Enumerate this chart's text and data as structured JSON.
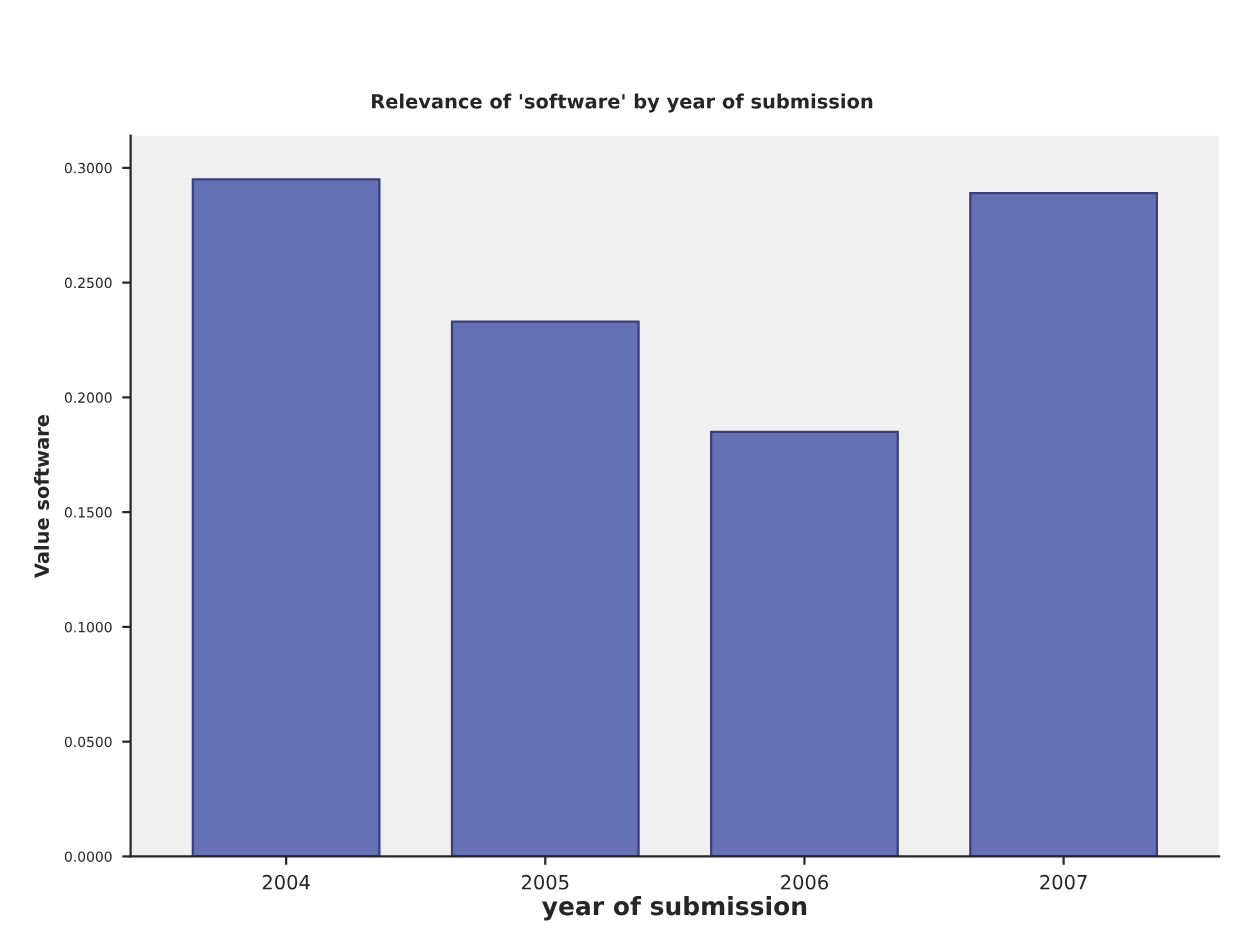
{
  "chart_data": {
    "type": "bar",
    "title": "Relevance of 'software' by year of submission",
    "xlabel": "year of submission",
    "ylabel": "Value software",
    "categories": [
      "2004",
      "2005",
      "2006",
      "2007"
    ],
    "values": [
      0.295,
      0.233,
      0.185,
      0.289
    ],
    "color": "#6670b4",
    "ylim": [
      0,
      0.314
    ],
    "yticks": [
      {
        "value": 0,
        "label": "0.0000"
      },
      {
        "value": 0.05,
        "label": "0.0500"
      },
      {
        "value": 0.1,
        "label": "0.1000"
      },
      {
        "value": 0.15,
        "label": "0.1500"
      },
      {
        "value": 0.2,
        "label": "0.2000"
      },
      {
        "value": 0.25,
        "label": "0.2500"
      },
      {
        "value": 0.3,
        "label": "0.3000"
      }
    ],
    "grid": false,
    "legend": false
  }
}
